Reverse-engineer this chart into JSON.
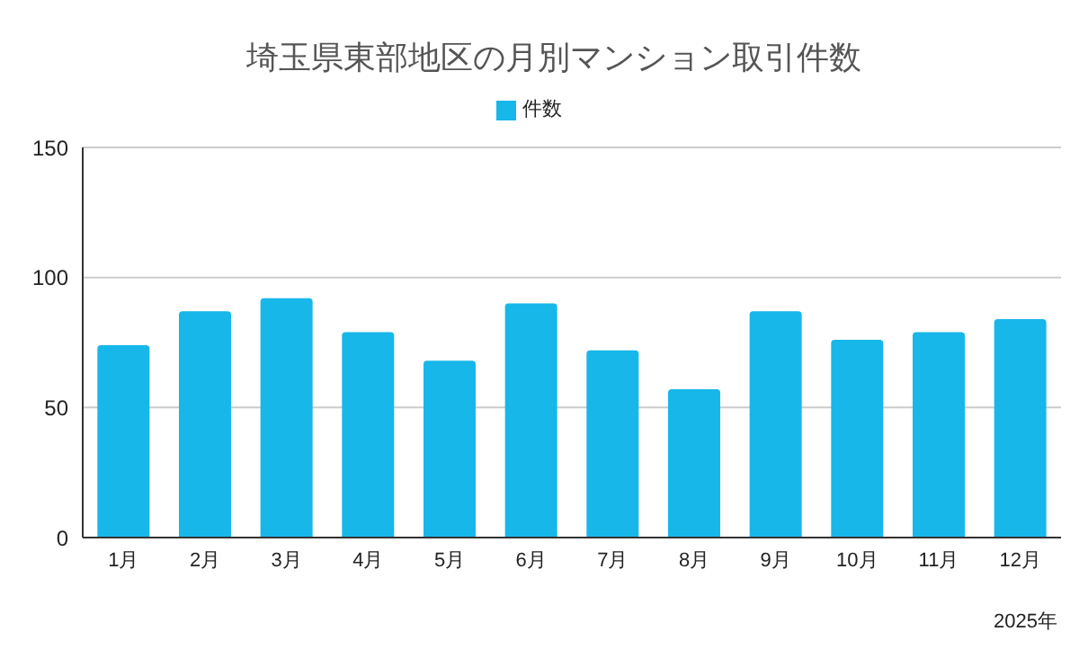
{
  "chart_data": {
    "type": "bar",
    "title": "埼玉県東部地区の月別マンション取引件数",
    "xlabel": "2025年",
    "categories": [
      "1月",
      "2月",
      "3月",
      "4月",
      "5月",
      "6月",
      "7月",
      "8月",
      "9月",
      "10月",
      "11月",
      "12月"
    ],
    "series": [
      {
        "name": "件数",
        "color": "#17b7ea",
        "values": [
          74,
          87,
          92,
          79,
          68,
          90,
          72,
          57,
          87,
          76,
          79,
          84
        ]
      }
    ],
    "ylim": [
      0,
      150
    ],
    "yticks": [
      0,
      50,
      100,
      150
    ],
    "grid": "y",
    "legend": "top"
  }
}
